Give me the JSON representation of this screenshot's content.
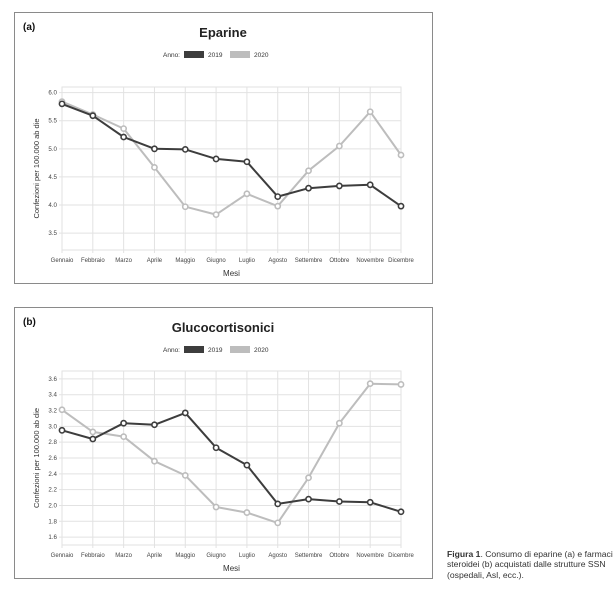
{
  "chart_data": [
    {
      "type": "line",
      "panel_label": "(a)",
      "title": "Eparine",
      "legend_title": "Anno:",
      "xlabel": "Mesi",
      "ylabel": "Confezioni per 100.000 ab die",
      "categories": [
        "Gennaio",
        "Febbraio",
        "Marzo",
        "Aprile",
        "Maggio",
        "Giugno",
        "Luglio",
        "Agosto",
        "Settembre",
        "Ottobre",
        "Novembre",
        "Dicembre"
      ],
      "ylim": [
        3.2,
        6.1
      ],
      "yticks": [
        "3.5",
        "4.0",
        "4.5",
        "5.0",
        "5.5",
        "6.0"
      ],
      "grid": true,
      "legend_position": "top-center",
      "series": [
        {
          "name": "2019",
          "color": "#3d3d3d",
          "values": [
            5.8,
            5.59,
            5.21,
            5.0,
            4.99,
            4.82,
            4.77,
            4.15,
            4.3,
            4.34,
            4.36,
            3.98
          ]
        },
        {
          "name": "2020",
          "color": "#bdbdbd",
          "values": [
            5.84,
            5.61,
            5.36,
            4.67,
            3.97,
            3.83,
            4.2,
            3.98,
            4.61,
            5.05,
            5.66,
            4.89
          ]
        }
      ]
    },
    {
      "type": "line",
      "panel_label": "(b)",
      "title": "Glucocortisonici",
      "legend_title": "Anno:",
      "xlabel": "Mesi",
      "ylabel": "Confezioni per 100.000 ab die",
      "categories": [
        "Gennaio",
        "Febbraio",
        "Marzo",
        "Aprile",
        "Maggio",
        "Giugno",
        "Luglio",
        "Agosto",
        "Settembre",
        "Ottobre",
        "Novembre",
        "Dicembre"
      ],
      "ylim": [
        1.5,
        3.7
      ],
      "yticks": [
        "1.6",
        "1.8",
        "2.0",
        "2.2",
        "2.4",
        "2.6",
        "2.8",
        "3.0",
        "3.2",
        "3.4",
        "3.6"
      ],
      "grid": true,
      "legend_position": "top-center",
      "series": [
        {
          "name": "2019",
          "color": "#3d3d3d",
          "values": [
            2.95,
            2.84,
            3.04,
            3.02,
            3.17,
            2.73,
            2.51,
            2.02,
            2.08,
            2.05,
            2.04,
            1.92
          ]
        },
        {
          "name": "2020",
          "color": "#bdbdbd",
          "values": [
            3.21,
            2.93,
            2.87,
            2.56,
            2.38,
            1.98,
            1.91,
            1.78,
            2.35,
            3.04,
            3.54,
            3.53
          ]
        }
      ]
    }
  ],
  "caption": {
    "label": "Figura 1",
    "text": ". Consumo di eparine (a) e farmaci steroidei (b) acquistati dalle strutture SSN (ospedali, Asl, ecc.)."
  }
}
